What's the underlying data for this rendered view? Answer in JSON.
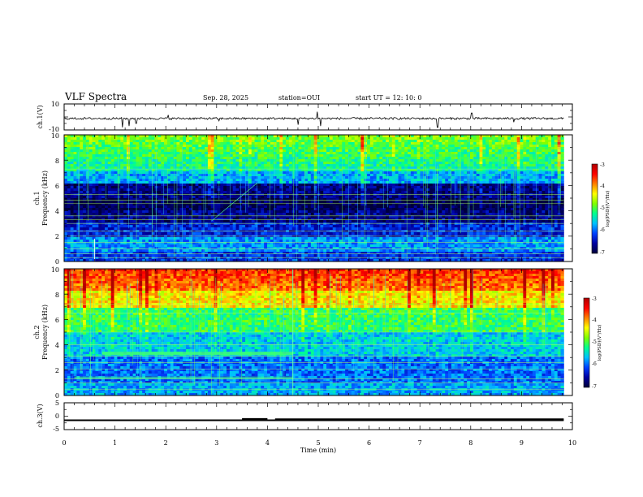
{
  "header": {
    "title": "VLF Spectra",
    "date": "Sep. 28, 2025",
    "station": "station=OUI",
    "start_ut": "start  UT =   12: 10: 0"
  },
  "chart_data": [
    {
      "id": "ch1-waveform",
      "type": "line",
      "ylabel": "ch.1(V)",
      "ylim": [
        -10,
        10
      ],
      "yticks": [
        "10",
        "-10"
      ],
      "xlim": [
        0,
        10
      ],
      "baseline": -1.2,
      "spikes": [
        {
          "t": 1.15,
          "v": -8
        },
        {
          "t": 1.28,
          "v": -7
        },
        {
          "t": 1.42,
          "v": -5
        },
        {
          "t": 2.05,
          "v": 1.5
        },
        {
          "t": 3.05,
          "v": -3
        },
        {
          "t": 4.6,
          "v": -6
        },
        {
          "t": 4.98,
          "v": 4
        },
        {
          "t": 5.05,
          "v": -7
        },
        {
          "t": 7.35,
          "v": -8
        },
        {
          "t": 8.02,
          "v": 3
        },
        {
          "t": 8.85,
          "v": -4
        }
      ],
      "color": "#000000"
    },
    {
      "id": "ch1-spectrogram",
      "type": "heatmap",
      "ylabel": "Frequency (kHz)",
      "channel_label": "ch.1",
      "ylim": [
        0,
        10
      ],
      "xlim": [
        0,
        10
      ],
      "yticks": [
        "0",
        "2",
        "4",
        "6",
        "8",
        "10"
      ],
      "colorbar": {
        "label": "log(PSD)(V²/Hz)",
        "range": [
          -7,
          -3
        ],
        "ticks": [
          "-3",
          "-4",
          "-5",
          "-6",
          "-7"
        ]
      },
      "features": "green/cyan broadband noise above ~6 kHz, dark blue band 3-6 kHz, blue-cyan below 2 kHz, horizontal lines at fixed frequencies"
    },
    {
      "id": "ch2-spectrogram",
      "type": "heatmap",
      "ylabel": "Frequency (kHz)",
      "channel_label": "ch.2",
      "ylim": [
        0,
        10
      ],
      "xlim": [
        0,
        10
      ],
      "yticks": [
        "0",
        "2",
        "4",
        "6",
        "8",
        "10"
      ],
      "colorbar": {
        "label": "log(PSD)(V²/Hz)",
        "range": [
          -7,
          -3
        ],
        "ticks": [
          "-3",
          "-4",
          "-5",
          "-6",
          "-7"
        ]
      },
      "features": "red/yellow high PSD above ~7 kHz, green-cyan mid band, green band near 3.3 kHz from 0.75 to 4.5 min"
    },
    {
      "id": "ch3-trace",
      "type": "line",
      "ylabel": "ch.3(V)",
      "ylim": [
        -5,
        5
      ],
      "yticks": [
        "5",
        "0",
        "-5"
      ],
      "xlim": [
        0,
        10
      ],
      "xlabel": "Time (min)",
      "xticks": [
        "0",
        "1",
        "2",
        "3",
        "4",
        "5",
        "6",
        "7",
        "8",
        "9",
        "10"
      ],
      "segments": [
        {
          "t0": 0.0,
          "t1": 9.83,
          "v": -1.5
        },
        {
          "t0": 3.5,
          "t1": 4.0,
          "v": -1.1
        },
        {
          "t0": 4.15,
          "t1": 9.83,
          "v": -1.2
        }
      ],
      "color": "#000000"
    }
  ],
  "colormap": [
    "#00003a",
    "#0000a0",
    "#0040ff",
    "#00c0ff",
    "#00ff90",
    "#80ff00",
    "#ffff00",
    "#ff8000",
    "#ff0000",
    "#b00000"
  ]
}
